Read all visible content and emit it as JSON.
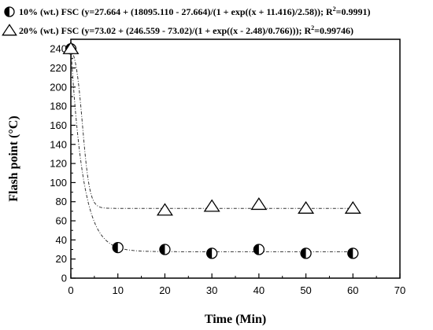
{
  "chart_data": {
    "type": "scatter",
    "xlabel": "Time (Min)",
    "ylabel": "Flash point (°C)",
    "xlim": [
      0,
      70
    ],
    "ylim": [
      0,
      250
    ],
    "x_ticks": [
      0,
      10,
      20,
      30,
      40,
      50,
      60,
      70
    ],
    "y_ticks": [
      0,
      20,
      40,
      60,
      80,
      100,
      120,
      140,
      160,
      180,
      200,
      220,
      240
    ],
    "grid": false,
    "legend_position": "top-left",
    "series": [
      {
        "name": "10% (wt.) FSC (y=27.664 + (18095.110 - 27.664)/(1 + exp((x + 11.416)/2.58)); R",
        "r2_sup": "2",
        "r2_value": "=0.9991)",
        "marker": "half-filled-circle",
        "x": [
          0,
          10,
          20,
          30,
          40,
          50,
          60
        ],
        "y": [
          240,
          32,
          30,
          26,
          30,
          26,
          26
        ],
        "fit": {
          "A1": 18095.11,
          "A2": 27.664,
          "x0": -11.416,
          "dx": 2.58
        }
      },
      {
        "name": "20% (wt.) FSC (y=73.02 + (246.559 - 73.02)/(1 + exp((x - 2.48)/0.766))); R",
        "r2_sup": "2",
        "r2_value": "=0.99746)",
        "marker": "open-triangle",
        "x": [
          0,
          20,
          30,
          40,
          50,
          60
        ],
        "y": [
          240,
          71,
          75,
          77,
          73,
          73
        ],
        "fit": {
          "A1": 246.559,
          "A2": 73.02,
          "x0": 2.48,
          "dx": 0.766
        }
      }
    ]
  }
}
